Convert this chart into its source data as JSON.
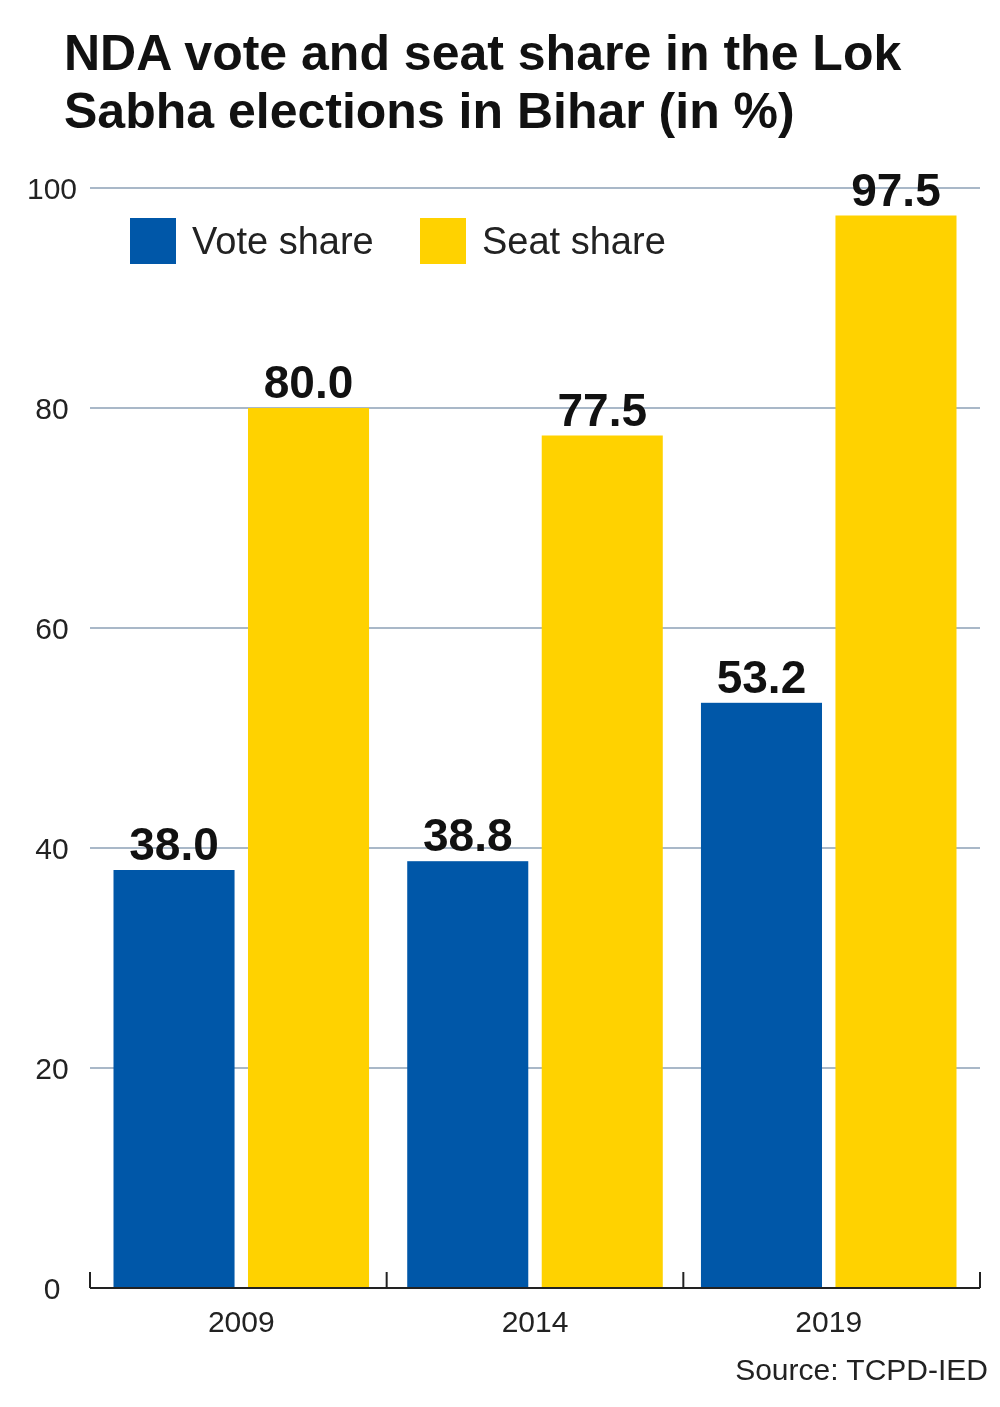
{
  "chart_data": {
    "type": "bar",
    "title": "NDA vote and seat share in the Lok Sabha elections in Bihar (in %)",
    "categories": [
      "2009",
      "2014",
      "2019"
    ],
    "series": [
      {
        "name": "Vote share",
        "color": "#0057a8",
        "values": [
          38.0,
          38.8,
          53.2
        ],
        "value_labels": [
          "38.0",
          "38.8",
          "53.2"
        ]
      },
      {
        "name": "Seat share",
        "color": "#ffd200",
        "values": [
          80.0,
          77.5,
          97.5
        ],
        "value_labels": [
          "80.0",
          "77.5",
          "97.5"
        ]
      }
    ],
    "ylim": [
      0,
      100
    ],
    "yticks": [
      0,
      20,
      40,
      60,
      80,
      100
    ],
    "grid": "y",
    "legend": "top left",
    "annotations": [
      "Source: TCPD-IED"
    ]
  }
}
